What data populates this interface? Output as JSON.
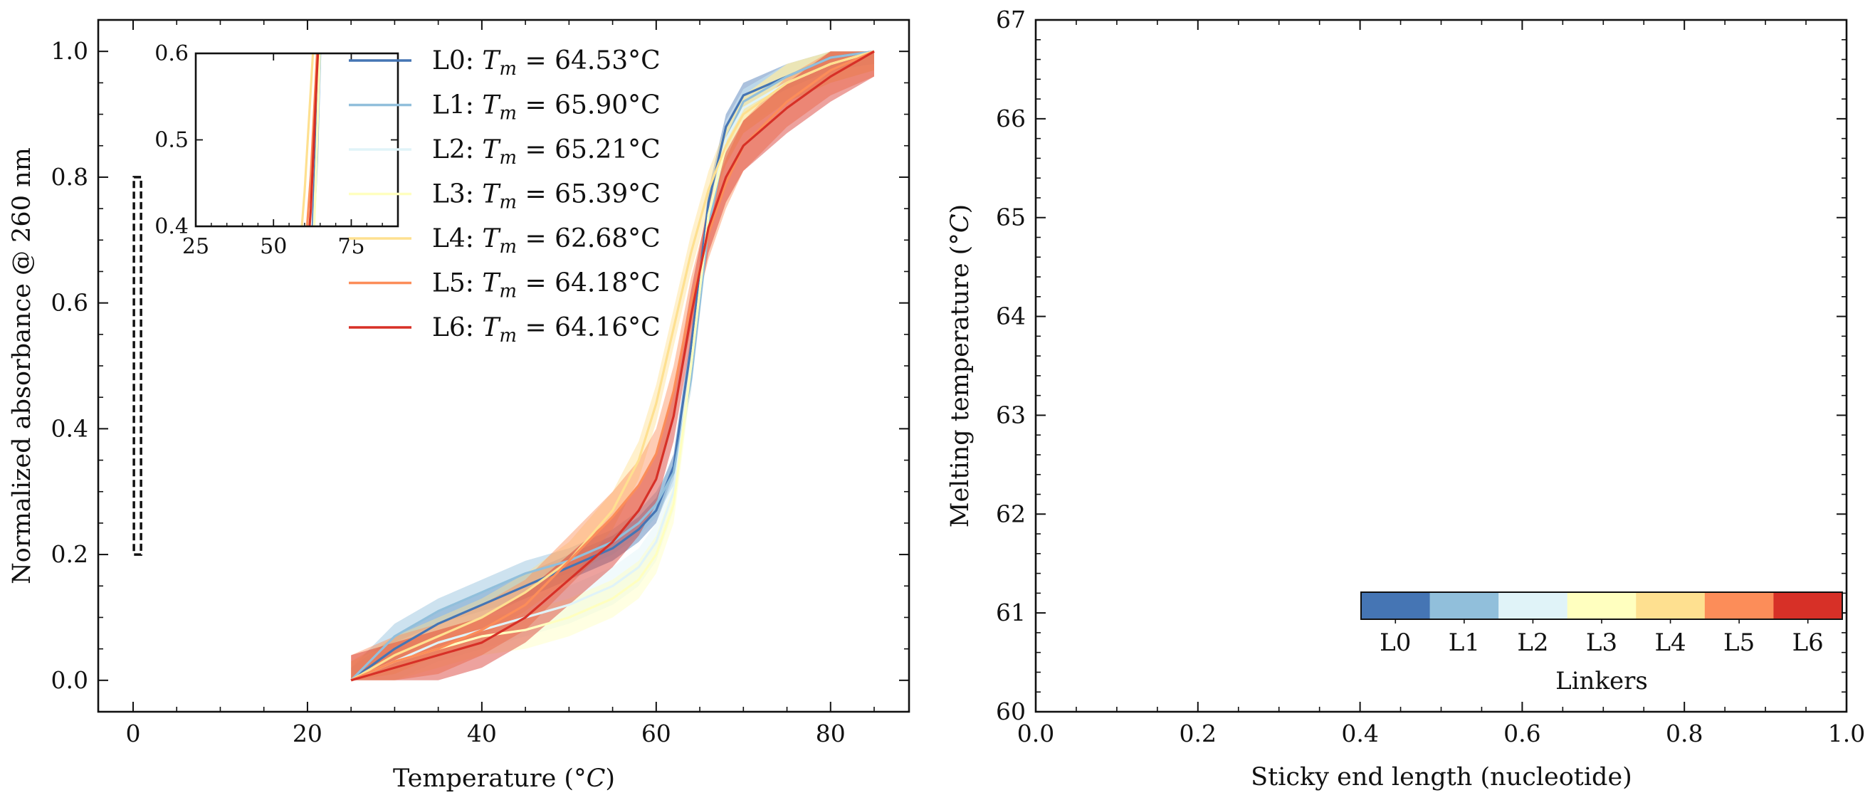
{
  "chart_data": [
    {
      "type": "line",
      "xlabel": "Temperature (°C)",
      "ylabel": "Normalized absorbance @ 260 nm",
      "xlim": [
        -4,
        89
      ],
      "ylim": [
        -0.05,
        1.05
      ],
      "xticks": [
        0,
        20,
        40,
        60,
        80
      ],
      "yticks": [
        0.0,
        0.2,
        0.4,
        0.6,
        0.8,
        1.0
      ],
      "legend_position": "upper-center",
      "x": [
        25,
        30,
        35,
        40,
        45,
        50,
        55,
        58,
        60,
        62,
        64,
        66,
        68,
        70,
        75,
        80,
        85
      ],
      "series": [
        {
          "name": "L0",
          "tm_label": "L0: T_m = 64.53°C",
          "tm": 64.53,
          "color": "#4575b4",
          "band": 0.02,
          "values": [
            0.0,
            0.05,
            0.09,
            0.12,
            0.15,
            0.18,
            0.21,
            0.24,
            0.27,
            0.34,
            0.53,
            0.76,
            0.88,
            0.93,
            0.96,
            0.99,
            1.0
          ]
        },
        {
          "name": "L1",
          "tm_label": "L1: T_m = 65.90°C",
          "tm": 65.9,
          "color": "#91bfdb",
          "band": 0.02,
          "values": [
            0.0,
            0.07,
            0.11,
            0.14,
            0.17,
            0.19,
            0.22,
            0.25,
            0.28,
            0.33,
            0.48,
            0.72,
            0.86,
            0.92,
            0.96,
            0.99,
            1.0
          ]
        },
        {
          "name": "L2",
          "tm_label": "L2: T_m = 65.21°C",
          "tm": 65.21,
          "color": "#e0f3f8",
          "band": 0.03,
          "values": [
            0.0,
            0.03,
            0.06,
            0.08,
            0.1,
            0.12,
            0.15,
            0.18,
            0.22,
            0.3,
            0.5,
            0.74,
            0.86,
            0.91,
            0.95,
            0.98,
            1.0
          ]
        },
        {
          "name": "L3",
          "tm_label": "L3: T_m = 65.39°C",
          "tm": 65.39,
          "color": "#ffffbf",
          "band": 0.03,
          "values": [
            0.0,
            0.03,
            0.05,
            0.07,
            0.08,
            0.1,
            0.13,
            0.16,
            0.2,
            0.28,
            0.5,
            0.74,
            0.85,
            0.9,
            0.95,
            0.98,
            1.0
          ]
        },
        {
          "name": "L4",
          "tm_label": "L4: T_m = 62.68°C",
          "tm": 62.68,
          "color": "#fee090",
          "band": 0.03,
          "values": [
            0.0,
            0.04,
            0.07,
            0.1,
            0.14,
            0.19,
            0.27,
            0.35,
            0.44,
            0.56,
            0.68,
            0.78,
            0.85,
            0.9,
            0.95,
            0.98,
            1.0
          ]
        },
        {
          "name": "L5",
          "tm_label": "L5: T_m = 64.18°C",
          "tm": 64.18,
          "color": "#fc8d59",
          "band": 0.04,
          "values": [
            0.0,
            0.03,
            0.05,
            0.08,
            0.12,
            0.19,
            0.26,
            0.31,
            0.36,
            0.46,
            0.6,
            0.71,
            0.79,
            0.85,
            0.92,
            0.97,
            1.0
          ]
        },
        {
          "name": "L6",
          "tm_label": "L6: T_m = 64.16°C",
          "tm": 64.16,
          "color": "#d73027",
          "band": 0.04,
          "values": [
            0.0,
            0.02,
            0.04,
            0.06,
            0.1,
            0.16,
            0.22,
            0.27,
            0.32,
            0.42,
            0.58,
            0.72,
            0.8,
            0.85,
            0.91,
            0.96,
            1.0
          ]
        }
      ],
      "error_bar": {
        "x": 0.5,
        "y_low": 0.2,
        "y_high": 0.8,
        "style": "dashed"
      },
      "inset": {
        "xlim": [
          25,
          90
        ],
        "ylim": [
          0.4,
          0.6
        ],
        "xticks": [
          25,
          50,
          75
        ],
        "yticks": [
          0.4,
          0.5,
          0.6
        ]
      }
    },
    {
      "type": "scatter",
      "xlabel": "Sticky end length (nucleotide)",
      "ylabel": "Melting temperature (°C)",
      "xlim": [
        0.0,
        1.0
      ],
      "ylim": [
        60,
        67
      ],
      "xticks": [
        0.0,
        0.2,
        0.4,
        0.6,
        0.8,
        1.0
      ],
      "yticks": [
        60,
        61,
        62,
        63,
        64,
        65,
        66,
        67
      ],
      "series": [],
      "colorbar": {
        "label": "Linkers",
        "position": "lower-right",
        "categories": [
          "L0",
          "L1",
          "L2",
          "L3",
          "L4",
          "L5",
          "L6"
        ],
        "colors": [
          "#4575b4",
          "#91bfdb",
          "#e0f3f8",
          "#ffffbf",
          "#fee090",
          "#fc8d59",
          "#d73027"
        ]
      }
    }
  ]
}
